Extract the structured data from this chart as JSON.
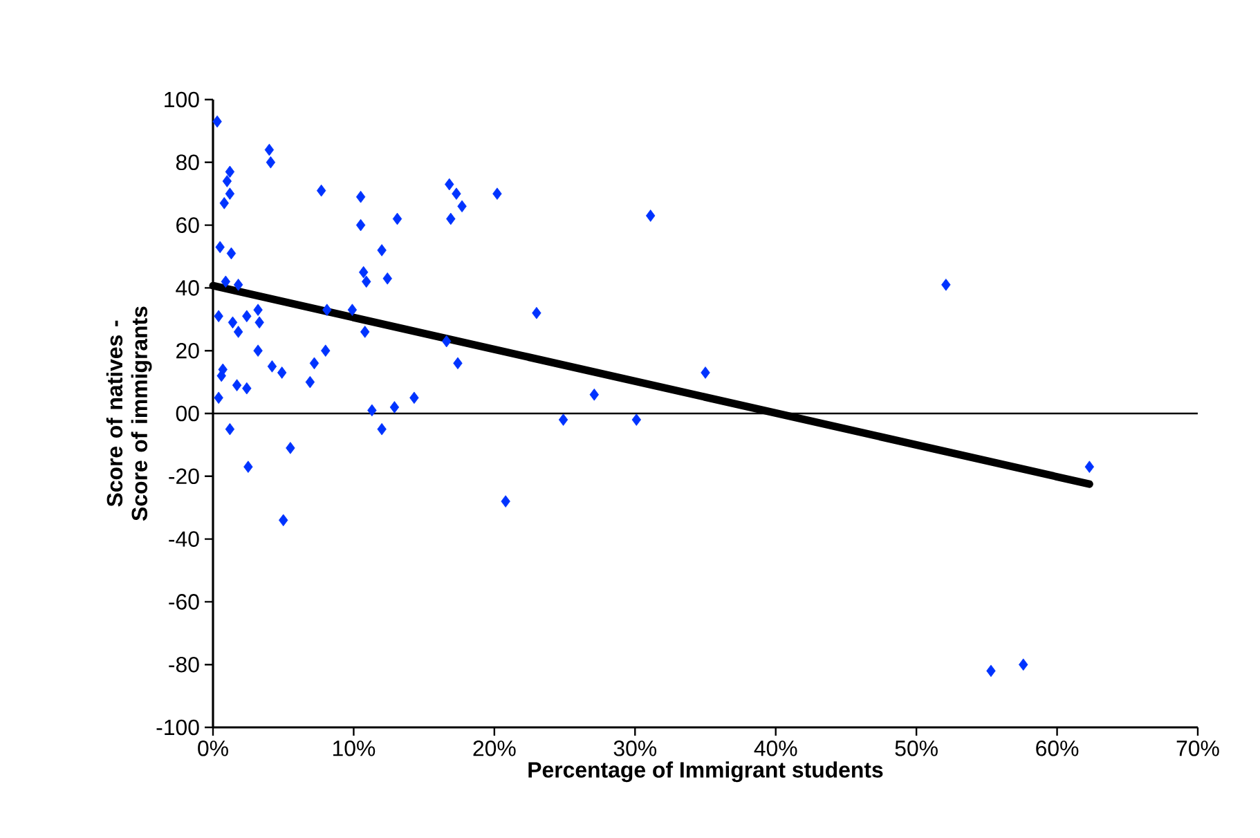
{
  "chart_data": {
    "type": "scatter",
    "xlabel": "Percentage of Immigrant students",
    "ylabel": "Score of  natives - Score of immigrants",
    "xlim": [
      0,
      70
    ],
    "xticks": [
      {
        "value": 0,
        "label": "0%"
      },
      {
        "value": 10,
        "label": "10%"
      },
      {
        "value": 20,
        "label": "20%"
      },
      {
        "value": 30,
        "label": "30%"
      },
      {
        "value": 40,
        "label": "40%"
      },
      {
        "value": 50,
        "label": "50%"
      },
      {
        "value": 60,
        "label": "60%"
      },
      {
        "value": 70,
        "label": "70%"
      }
    ],
    "ylim": [
      -100,
      100
    ],
    "yticks": [
      100,
      80,
      60,
      40,
      20,
      {
        "value": 0,
        "label": "00"
      },
      -20,
      -40,
      -60,
      -80,
      -100
    ],
    "ref_lines": [
      {
        "axis": "y",
        "value": 0,
        "color": "#000000"
      }
    ],
    "series": [
      {
        "marker": "diamond",
        "color": "#0033ff",
        "x": [
          0.3,
          1.2,
          1.0,
          1.2,
          0.8,
          0.5,
          1.3,
          0.9,
          1.8,
          0.4,
          1.4,
          1.8,
          2.4,
          3.2,
          3.3,
          3.2,
          0.7,
          0.6,
          1.7,
          2.4,
          0.4,
          1.2,
          2.5,
          5.5,
          5.0,
          4.0,
          4.1,
          7.7,
          4.2,
          4.9,
          6.9,
          7.2,
          8.0,
          8.1,
          10.5,
          10.5,
          13.1,
          12.0,
          10.7,
          10.9,
          12.4,
          9.9,
          10.8,
          16.8,
          17.3,
          17.7,
          16.9,
          20.2,
          31.1,
          23.0,
          16.6,
          17.4,
          14.3,
          11.3,
          12.9,
          12.0,
          24.9,
          30.1,
          27.1,
          20.8,
          52.1,
          35.0,
          62.3,
          55.3,
          57.6
        ],
        "values": [
          93,
          77,
          74,
          70,
          67,
          53,
          51,
          42,
          41,
          31,
          29,
          26,
          31,
          33,
          29,
          20,
          14,
          12,
          9,
          8,
          5,
          -5,
          -17,
          -11,
          -34,
          84,
          80,
          71,
          15,
          13,
          10,
          16,
          20,
          33,
          69,
          60,
          62,
          52,
          45,
          42,
          43,
          33,
          26,
          73,
          70,
          66,
          62,
          70,
          63,
          32,
          23,
          16,
          5,
          1,
          2,
          -5,
          -2,
          -2,
          6,
          -28,
          41,
          13,
          -17,
          -82,
          -80
        ]
      },
      {
        "type": "line",
        "marker": "none",
        "color": "#000000",
        "x": [
          0,
          62.3
        ],
        "values": [
          40.7,
          -22.5
        ]
      }
    ]
  }
}
